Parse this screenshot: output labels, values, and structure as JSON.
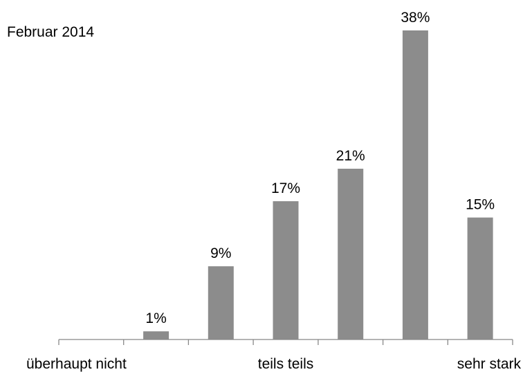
{
  "chart_data": {
    "type": "bar",
    "annotation": "Februar 2014",
    "categories": [
      "",
      "",
      "",
      "",
      "",
      "",
      ""
    ],
    "values": [
      0,
      1,
      9,
      17,
      21,
      38,
      15
    ],
    "data_labels": [
      "",
      "1%",
      "9%",
      "17%",
      "21%",
      "38%",
      "15%"
    ],
    "axis_labels": [
      {
        "category_index": 0,
        "text": "überhaupt nicht"
      },
      {
        "category_index": 3,
        "text": "teils teils"
      },
      {
        "category_index": 6,
        "text": "sehr stark"
      }
    ],
    "ylim": [
      0,
      38
    ],
    "grid": false,
    "legend": "none",
    "bar_color": "#8c8c8c",
    "axis_color": "#888888"
  }
}
